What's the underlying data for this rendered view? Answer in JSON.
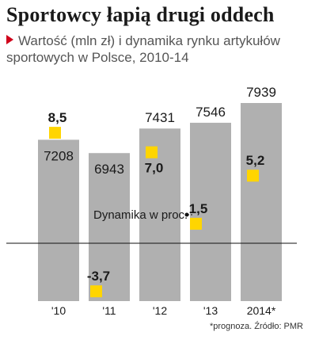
{
  "title": "Sportowcy łapią drugi oddech",
  "subtitle": "Wartość (mln zł) i dynamika rynku artykułów sportowych w Polsce, 2010-14",
  "source": "*prognoza. Źródło: PMR",
  "colors": {
    "bar": "#b0b0b0",
    "marker": "#ffd500",
    "subtitle_arrow": "#d0021b",
    "text": "#1a1a1a"
  },
  "chart_data": {
    "type": "bar",
    "categories": [
      "'10",
      "'11",
      "'12",
      "'13",
      "2014*"
    ],
    "series": [
      {
        "name": "Wartość (mln zł)",
        "type": "bar",
        "values": [
          7208,
          6943,
          7431,
          7546,
          7939
        ],
        "labels": [
          "7208",
          "6943",
          "7431",
          "7546",
          "7939"
        ]
      },
      {
        "name": "Dynamika w proc.",
        "type": "scatter",
        "values": [
          8.5,
          -3.7,
          7.0,
          1.5,
          5.2
        ],
        "labels": [
          "8,5",
          "-3,7",
          "7,0",
          "1,5",
          "5,2"
        ]
      }
    ],
    "annotation": "Dynamika w proc.",
    "grid": false,
    "legend": "none"
  }
}
